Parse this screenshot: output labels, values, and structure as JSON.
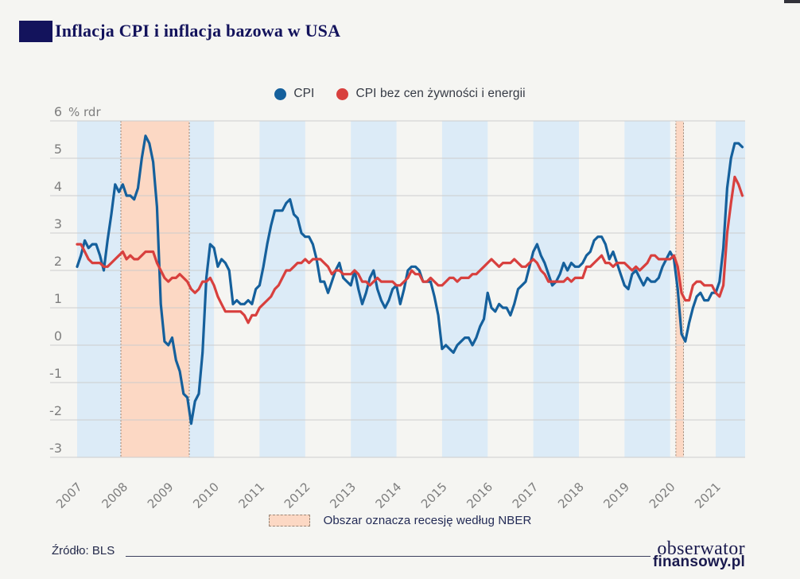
{
  "header": {
    "title": "Inflacja CPI i inflacja bazowa w USA",
    "accent_color": "#13135c"
  },
  "chart_data": {
    "type": "line",
    "title": "Inflacja CPI i inflacja bazowa w USA",
    "unit_label": "% rdr",
    "frequency": "monthly",
    "x_start": "2007-01",
    "x_end": "2021-08",
    "ylim": [
      -3,
      6
    ],
    "y_ticks": [
      6,
      5,
      4,
      3,
      2,
      1,
      0,
      -1,
      -2,
      -3
    ],
    "year_labels": [
      "2007",
      "2008",
      "2009",
      "2010",
      "2011",
      "2012",
      "2013",
      "2014",
      "2015",
      "2016",
      "2017",
      "2018",
      "2019",
      "2020",
      "2021"
    ],
    "grid": "horizontal",
    "plot_bands": "odd years shaded light blue",
    "legend_position": "top-center",
    "series": [
      {
        "id": "cpi",
        "name": "CPI",
        "color": "#15609c",
        "values": [
          2.1,
          2.4,
          2.8,
          2.6,
          2.7,
          2.7,
          2.4,
          2.0,
          2.8,
          3.5,
          4.3,
          4.1,
          4.3,
          4.0,
          4.0,
          3.9,
          4.2,
          5.0,
          5.6,
          5.4,
          4.9,
          3.7,
          1.1,
          0.1,
          0.0,
          0.2,
          -0.4,
          -0.7,
          -1.3,
          -1.4,
          -2.1,
          -1.5,
          -1.3,
          -0.2,
          1.8,
          2.7,
          2.6,
          2.1,
          2.3,
          2.2,
          2.0,
          1.1,
          1.2,
          1.1,
          1.1,
          1.2,
          1.1,
          1.5,
          1.6,
          2.1,
          2.7,
          3.2,
          3.6,
          3.6,
          3.6,
          3.8,
          3.9,
          3.5,
          3.4,
          3.0,
          2.9,
          2.9,
          2.7,
          2.3,
          1.7,
          1.7,
          1.4,
          1.7,
          2.0,
          2.2,
          1.8,
          1.7,
          1.6,
          2.0,
          1.5,
          1.1,
          1.4,
          1.8,
          2.0,
          1.5,
          1.2,
          1.0,
          1.2,
          1.5,
          1.6,
          1.1,
          1.5,
          2.0,
          2.1,
          2.1,
          2.0,
          1.7,
          1.7,
          1.7,
          1.3,
          0.8,
          -0.1,
          0.0,
          -0.1,
          -0.2,
          0.0,
          0.1,
          0.2,
          0.2,
          0.0,
          0.2,
          0.5,
          0.7,
          1.4,
          1.0,
          0.9,
          1.1,
          1.0,
          1.0,
          0.8,
          1.1,
          1.5,
          1.6,
          1.7,
          2.1,
          2.5,
          2.7,
          2.4,
          2.2,
          1.9,
          1.6,
          1.7,
          1.9,
          2.2,
          2.0,
          2.2,
          2.1,
          2.1,
          2.2,
          2.4,
          2.5,
          2.8,
          2.9,
          2.9,
          2.7,
          2.3,
          2.5,
          2.2,
          1.9,
          1.6,
          1.5,
          1.9,
          2.0,
          1.8,
          1.6,
          1.8,
          1.7,
          1.7,
          1.8,
          2.1,
          2.3,
          2.5,
          2.3,
          1.5,
          0.3,
          0.1,
          0.6,
          1.0,
          1.3,
          1.4,
          1.2,
          1.2,
          1.4,
          1.4,
          1.7,
          2.6,
          4.2,
          5.0,
          5.4,
          5.4,
          5.3
        ]
      },
      {
        "id": "core-cpi",
        "name": "CPI bez cen żywności i energii",
        "color": "#d8403e",
        "values": [
          2.7,
          2.7,
          2.5,
          2.3,
          2.2,
          2.2,
          2.2,
          2.1,
          2.1,
          2.2,
          2.3,
          2.4,
          2.5,
          2.3,
          2.4,
          2.3,
          2.3,
          2.4,
          2.5,
          2.5,
          2.5,
          2.2,
          2.0,
          1.8,
          1.7,
          1.8,
          1.8,
          1.9,
          1.8,
          1.7,
          1.5,
          1.4,
          1.5,
          1.7,
          1.7,
          1.8,
          1.6,
          1.3,
          1.1,
          0.9,
          0.9,
          0.9,
          0.9,
          0.9,
          0.8,
          0.6,
          0.8,
          0.8,
          1.0,
          1.1,
          1.2,
          1.3,
          1.5,
          1.6,
          1.8,
          2.0,
          2.0,
          2.1,
          2.2,
          2.2,
          2.3,
          2.2,
          2.3,
          2.3,
          2.3,
          2.2,
          2.1,
          1.9,
          2.0,
          2.0,
          1.9,
          1.9,
          1.9,
          2.0,
          1.9,
          1.7,
          1.7,
          1.6,
          1.7,
          1.8,
          1.7,
          1.7,
          1.7,
          1.7,
          1.6,
          1.6,
          1.7,
          1.8,
          2.0,
          1.9,
          1.9,
          1.7,
          1.7,
          1.8,
          1.7,
          1.6,
          1.6,
          1.7,
          1.8,
          1.8,
          1.7,
          1.8,
          1.8,
          1.8,
          1.9,
          1.9,
          2.0,
          2.1,
          2.2,
          2.3,
          2.2,
          2.1,
          2.2,
          2.2,
          2.2,
          2.3,
          2.2,
          2.1,
          2.1,
          2.2,
          2.3,
          2.2,
          2.0,
          1.9,
          1.7,
          1.7,
          1.7,
          1.7,
          1.7,
          1.8,
          1.7,
          1.8,
          1.8,
          1.8,
          2.1,
          2.1,
          2.2,
          2.3,
          2.4,
          2.2,
          2.2,
          2.1,
          2.2,
          2.2,
          2.2,
          2.1,
          2.0,
          2.1,
          2.0,
          2.1,
          2.2,
          2.4,
          2.4,
          2.3,
          2.3,
          2.3,
          2.3,
          2.4,
          2.1,
          1.4,
          1.2,
          1.2,
          1.6,
          1.7,
          1.7,
          1.6,
          1.6,
          1.6,
          1.4,
          1.3,
          1.6,
          3.0,
          3.8,
          4.5,
          4.3,
          4.0
        ]
      }
    ],
    "recessions": [
      {
        "from": "2007-12",
        "to": "2009-06"
      },
      {
        "from": "2020-02",
        "to": "2020-04"
      }
    ],
    "style": {
      "band_color": "#dcebf7",
      "recession_fill": "#fcd8c4",
      "recession_border": "#9b8676",
      "grid_color": "#cdcdcd",
      "tick_color": "#7e7e7e"
    }
  },
  "recession_legend": {
    "label": "Obszar oznacza recesję według NBER"
  },
  "footer": {
    "source": "Źródło: BLS",
    "logo_line1": "obserwator",
    "logo_line2": "finansowy.pl"
  }
}
